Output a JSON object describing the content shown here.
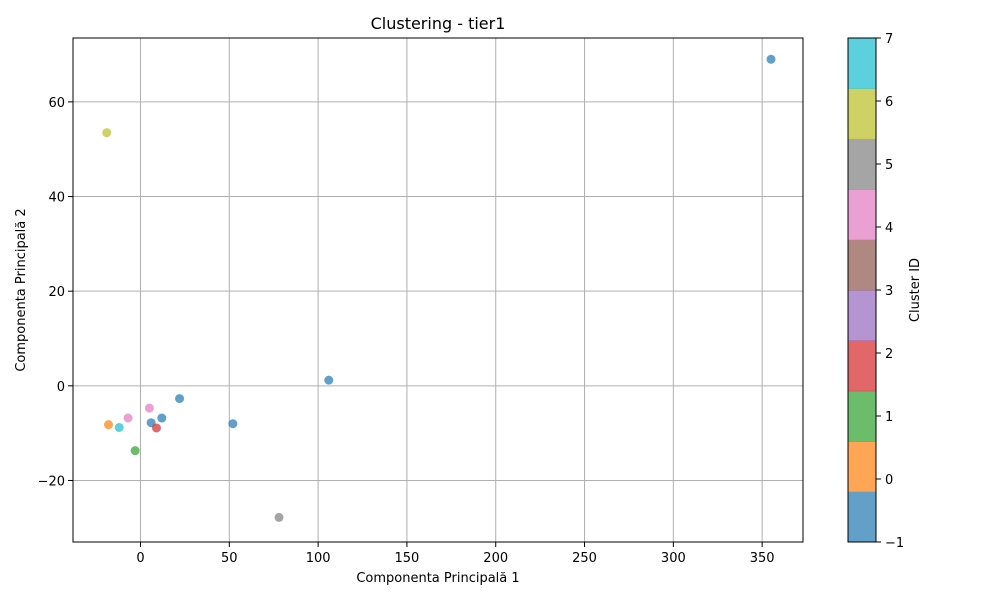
{
  "chart_data": {
    "type": "scatter",
    "title": "Clustering - tier1",
    "xlabel": "Componenta Principală 1",
    "ylabel": "Componenta Principală 2",
    "colorbar_label": "Cluster ID",
    "xlim": [
      -38,
      373
    ],
    "ylim": [
      -33,
      73.5
    ],
    "xticks": [
      0,
      50,
      100,
      150,
      200,
      250,
      300,
      350
    ],
    "xtick_labels": [
      "0",
      "50",
      "100",
      "150",
      "200",
      "250",
      "300",
      "350"
    ],
    "yticks": [
      -20,
      0,
      20,
      40,
      60
    ],
    "ytick_labels": [
      "−20",
      "0",
      "20",
      "40",
      "60"
    ],
    "grid": true,
    "colorbar_ticks": [
      -1,
      0,
      1,
      2,
      3,
      4,
      5,
      6,
      7
    ],
    "colorbar_tick_labels": [
      "−1",
      "0",
      "1",
      "2",
      "3",
      "4",
      "5",
      "6",
      "7"
    ],
    "cluster_colors": {
      "-1": "#1f77b4",
      "0": "#ff7f0e",
      "1": "#2ca02c",
      "2": "#d62728",
      "3": "#9467bd",
      "4": "#8c564b",
      "5": "#e377c2",
      "6": "#7f7f7f",
      "7": "#bcbd22",
      "8": "#17becf"
    },
    "colorbar_colors": [
      "#1f77b4",
      "#ff7f0e",
      "#2ca02c",
      "#d62728",
      "#9467bd",
      "#8c564b",
      "#e377c2",
      "#7f7f7f",
      "#bcbd22",
      "#17becf"
    ],
    "points": [
      {
        "x": 355,
        "y": 69,
        "cluster": -1
      },
      {
        "x": 106,
        "y": 1.2,
        "cluster": -1
      },
      {
        "x": 22,
        "y": -2.7,
        "cluster": -1
      },
      {
        "x": 52,
        "y": -8,
        "cluster": -1
      },
      {
        "x": 12,
        "y": -6.8,
        "cluster": -1
      },
      {
        "x": 6,
        "y": -7.8,
        "cluster": -1
      },
      {
        "x": -19,
        "y": 53.5,
        "cluster": 7
      },
      {
        "x": -18,
        "y": -8.2,
        "cluster": 0
      },
      {
        "x": -3,
        "y": -13.7,
        "cluster": 1
      },
      {
        "x": 9,
        "y": -8.9,
        "cluster": 2
      },
      {
        "x": 5,
        "y": -4.7,
        "cluster": 5
      },
      {
        "x": -7,
        "y": -6.8,
        "cluster": 5
      },
      {
        "x": -12,
        "y": -8.8,
        "cluster": 8
      },
      {
        "x": 78,
        "y": -27.8,
        "cluster": 6
      }
    ]
  }
}
